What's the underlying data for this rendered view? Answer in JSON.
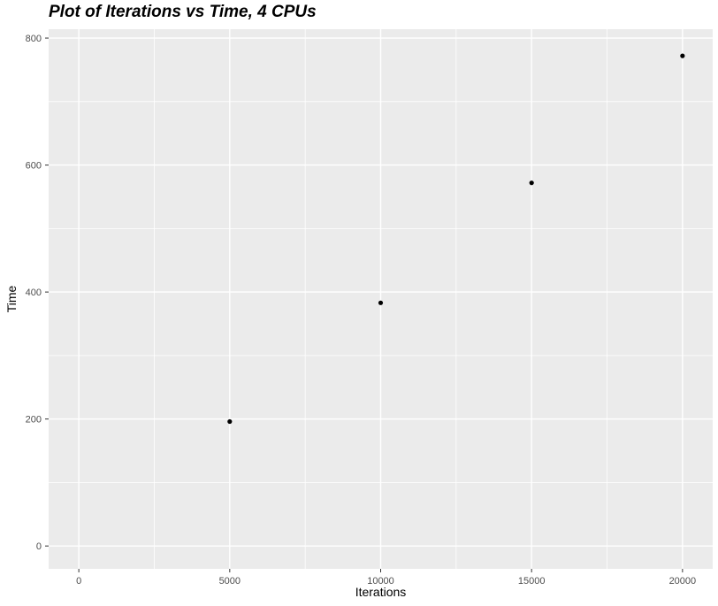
{
  "chart_data": {
    "type": "scatter",
    "title": "Plot of Iterations vs Time, 4 CPUs",
    "xlabel": "Iterations",
    "ylabel": "Time",
    "points": [
      {
        "x": 5000,
        "y": 196
      },
      {
        "x": 10000,
        "y": 383
      },
      {
        "x": 15000,
        "y": 572
      },
      {
        "x": 20000,
        "y": 772
      }
    ],
    "x_ticks": [
      0,
      5000,
      10000,
      15000,
      20000
    ],
    "x_tick_labels": [
      "0",
      "5000",
      "10000",
      "15000",
      "20000"
    ],
    "x_minor_ticks": [
      2500,
      7500,
      12500,
      17500
    ],
    "xlim": [
      -1000,
      21000
    ],
    "y_ticks": [
      0,
      200,
      400,
      600,
      800
    ],
    "y_tick_labels": [
      "0",
      "200",
      "400",
      "600",
      "800"
    ],
    "y_minor_ticks": [
      100,
      300,
      500,
      700
    ],
    "ylim": [
      -36,
      814
    ],
    "grid": true,
    "legend": false,
    "style": "ggplot2",
    "colors": {
      "panel_bg": "#EBEBEB",
      "grid": "#FFFFFF",
      "point": "#000000",
      "tick_mark": "#333333",
      "tick_label": "#4D4D4D",
      "axis_title": "#000000",
      "title": "#000000",
      "page_bg": "#FFFFFF"
    }
  }
}
